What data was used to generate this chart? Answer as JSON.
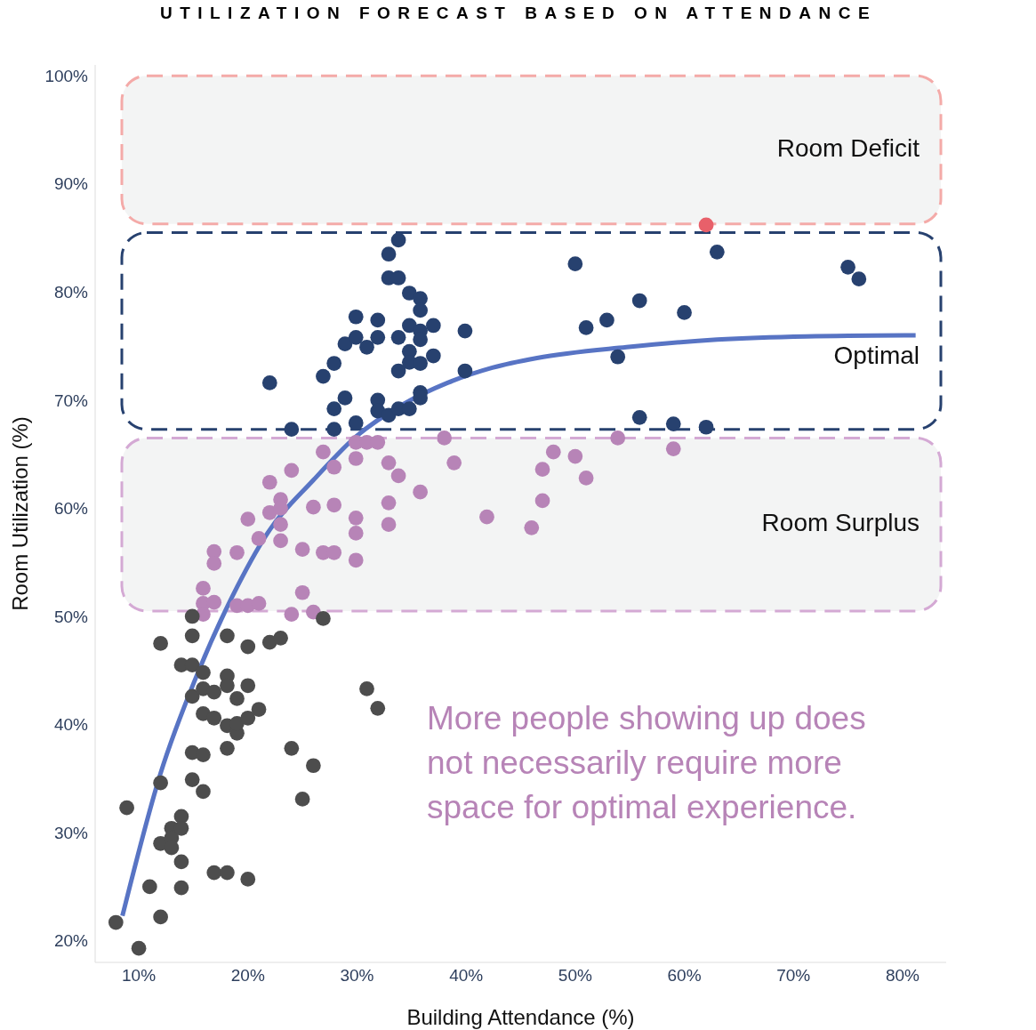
{
  "chart_data": {
    "type": "scatter",
    "title": "UTILIZATION FORECAST BASED ON ATTENDANCE",
    "xlabel": "Building Attendance (%)",
    "ylabel": "Room Utilization (%)",
    "marker": "circle",
    "xlim": [
      6,
      84
    ],
    "ylim": [
      18,
      101
    ],
    "xticks": [
      {
        "value": 10,
        "label": "10%"
      },
      {
        "value": 20,
        "label": "20%"
      },
      {
        "value": 30,
        "label": "30%"
      },
      {
        "value": 40,
        "label": "40%"
      },
      {
        "value": 50,
        "label": "50%"
      },
      {
        "value": 60,
        "label": "60%"
      },
      {
        "value": 70,
        "label": "70%"
      },
      {
        "value": 80,
        "label": "80%"
      }
    ],
    "yticks": [
      {
        "value": 20,
        "label": "20%"
      },
      {
        "value": 30,
        "label": "30%"
      },
      {
        "value": 40,
        "label": "40%"
      },
      {
        "value": 50,
        "label": "50%"
      },
      {
        "value": 60,
        "label": "60%"
      },
      {
        "value": 70,
        "label": "70%"
      },
      {
        "value": 80,
        "label": "80%"
      },
      {
        "value": 90,
        "label": "90%"
      },
      {
        "value": 100,
        "label": "100%"
      }
    ],
    "bands": [
      {
        "axis": "y",
        "from": 86.3,
        "to": 100,
        "label": "Room Deficit",
        "color": "#f4aaa8"
      },
      {
        "axis": "y",
        "from": 67.3,
        "to": 85.5,
        "label": "Optimal",
        "color": "#27416f"
      },
      {
        "axis": "y",
        "from": 50.5,
        "to": 66.5,
        "label": "Room Surplus",
        "color": "#d4a9d4"
      }
    ],
    "annotations": [
      "More people showing up does not necessarily require more space for optimal experience."
    ],
    "series": [
      {
        "color": "#27416f",
        "x": [
          24.0,
          22.0,
          26.9,
          27.9,
          28.9,
          27.9,
          27.9,
          28.9,
          29.9,
          29.9,
          29.9,
          30.9,
          31.9,
          31.9,
          31.9,
          31.9,
          32.9,
          32.9,
          32.9,
          33.8,
          33.8,
          33.8,
          33.8,
          33.8,
          34.8,
          34.8,
          34.8,
          34.8,
          34.8,
          35.8,
          35.8,
          35.8,
          35.8,
          35.8,
          35.8,
          35.8,
          37.0,
          37.0,
          39.9,
          39.9,
          50.0,
          51.0,
          52.9,
          53.9,
          55.9,
          55.9,
          59.0,
          60.0,
          62.0,
          63.0,
          75.0,
          76.0
        ],
        "values": [
          67.3,
          71.6,
          72.2,
          73.4,
          75.2,
          69.2,
          67.3,
          70.2,
          67.9,
          75.8,
          77.7,
          74.9,
          77.4,
          75.8,
          70.0,
          69.0,
          83.5,
          81.3,
          68.6,
          84.8,
          81.3,
          75.8,
          72.7,
          69.2,
          79.9,
          76.9,
          74.5,
          73.5,
          69.2,
          79.4,
          78.3,
          76.4,
          75.6,
          73.4,
          70.7,
          70.2,
          76.9,
          74.1,
          76.4,
          72.7,
          82.6,
          76.7,
          77.4,
          74.0,
          79.2,
          68.4,
          67.8,
          78.1,
          67.5,
          83.7,
          82.3,
          81.2
        ]
      },
      {
        "color": "#e8606a",
        "x": [
          62.0
        ],
        "values": [
          86.2
        ]
      },
      {
        "color": "#b784b7",
        "x": [
          26.9,
          27.9,
          22.0,
          24.0,
          22.0,
          23.0,
          23.0,
          20.0,
          19.0,
          21.0,
          23.0,
          23.0,
          25.0,
          26.0,
          26.9,
          27.9,
          27.9,
          29.9,
          29.9,
          30.9,
          31.9,
          32.9,
          33.8,
          32.9,
          32.9,
          29.9,
          29.9,
          29.9,
          35.8,
          38.0,
          38.9,
          41.9,
          46.0,
          47.0,
          47.0,
          48.0,
          50.0,
          51.0,
          53.9,
          59.0,
          16.9,
          16.9,
          15.9,
          15.9,
          16.9,
          15.9,
          19.0,
          20.0,
          21.0,
          24.0,
          26.0,
          25.0
        ],
        "values": [
          65.2,
          63.8,
          62.4,
          63.5,
          59.6,
          60.8,
          60.0,
          59.0,
          55.9,
          57.2,
          58.5,
          57.0,
          56.2,
          60.1,
          55.9,
          55.9,
          60.3,
          66.1,
          64.6,
          66.1,
          66.1,
          64.2,
          63.0,
          60.5,
          58.5,
          59.1,
          57.7,
          55.2,
          61.5,
          66.5,
          64.2,
          59.2,
          58.2,
          63.6,
          60.7,
          65.2,
          64.8,
          62.8,
          66.5,
          65.5,
          56.0,
          54.9,
          52.6,
          51.2,
          51.3,
          50.2,
          51.0,
          51.0,
          51.2,
          50.2,
          50.4,
          52.2
        ]
      },
      {
        "color": "#4d4d4d",
        "x": [
          7.9,
          10.0,
          8.9,
          11.0,
          12.0,
          12.0,
          12.0,
          12.0,
          13.0,
          13.0,
          13.0,
          13.9,
          13.9,
          13.9,
          13.9,
          13.9,
          14.9,
          14.9,
          14.9,
          14.9,
          14.9,
          14.9,
          15.9,
          15.9,
          15.9,
          15.9,
          15.9,
          16.9,
          16.9,
          16.9,
          18.1,
          18.1,
          18.1,
          18.1,
          18.1,
          18.1,
          19.0,
          19.0,
          19.0,
          20.0,
          20.0,
          20.0,
          20.0,
          21.0,
          22.0,
          23.0,
          24.0,
          25.0,
          26.0,
          26.9,
          30.9,
          31.9
        ],
        "values": [
          21.7,
          19.3,
          32.3,
          25.0,
          22.2,
          29.0,
          34.6,
          47.5,
          30.4,
          29.5,
          28.6,
          31.5,
          30.4,
          27.3,
          24.9,
          45.5,
          45.5,
          48.2,
          50.0,
          42.6,
          37.4,
          34.9,
          44.8,
          43.3,
          41.0,
          37.2,
          33.8,
          40.6,
          43.0,
          26.3,
          26.3,
          48.2,
          44.5,
          43.6,
          39.9,
          37.8,
          42.4,
          39.2,
          40.1,
          47.2,
          43.6,
          40.6,
          25.7,
          41.4,
          47.6,
          48.0,
          37.8,
          33.1,
          36.2,
          49.8,
          43.3,
          41.5
        ]
      },
      {
        "type": "line",
        "color": "#5874c4",
        "marker": "none",
        "line_style": "solid",
        "x": [
          8.5,
          12.0,
          15.3,
          18.6,
          21.8,
          26.0,
          30.0,
          34.2,
          38.3,
          42.4,
          46.5,
          54.7,
          63.0,
          71.2,
          81.2
        ],
        "values": [
          22.3,
          35.5,
          44.5,
          51.9,
          57.7,
          62.6,
          66.7,
          69.6,
          71.6,
          73.0,
          73.9,
          74.9,
          75.6,
          75.9,
          76.0
        ]
      }
    ]
  }
}
